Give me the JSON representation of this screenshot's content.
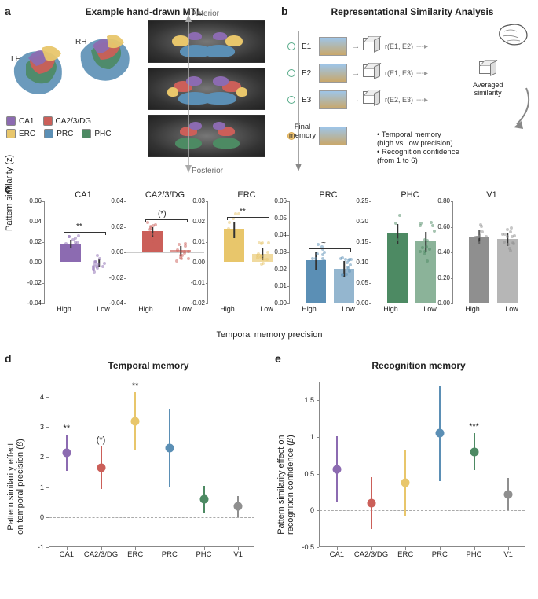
{
  "colors": {
    "CA1": "#8c6bb1",
    "CA23DG": "#cb5f59",
    "ERC": "#e8c66b",
    "PRC": "#5b8fb5",
    "PHC": "#4d8a63",
    "V1": "#8f8f8f",
    "background": "#ffffff"
  },
  "panel_a": {
    "label": "a",
    "title": "Example hand-drawn MTL",
    "lh": "LH",
    "rh": "RH",
    "regions": [
      "CA1",
      "CA2/3/DG",
      "ERC",
      "PRC",
      "PHC"
    ],
    "arrow_anterior": "Anterior",
    "arrow_posterior": "Posterior"
  },
  "panel_b": {
    "label": "b",
    "title": "Representational Similarity Analysis",
    "rows": [
      "E1",
      "E2",
      "E3"
    ],
    "corr_labels": [
      "r(E1, E2)",
      "r(E1, E3)",
      "r(E2, E3)"
    ],
    "avg_label": "Averaged\nsimilarity",
    "final": "Final\nmemory",
    "bullets": [
      "• Temporal memory",
      "  (high vs. low precision)",
      "• Recognition confidence",
      "  (from 1 to 6)"
    ]
  },
  "panel_c": {
    "label": "c",
    "ylabel": "Pattern similarity (z)",
    "xlabel_main": "Temporal memory precision",
    "xticks": [
      "High",
      "Low"
    ],
    "subplots": [
      {
        "name": "CA1",
        "color": "#8c6bb1",
        "ylim": [
          -0.04,
          0.06
        ],
        "ystep": 0.02,
        "high": 0.018,
        "low": -0.001,
        "err_h": 0.004,
        "err_l": 0.004,
        "sig": "**",
        "bracket": true
      },
      {
        "name": "CA2/3/DG",
        "color": "#cb5f59",
        "ylim": [
          -0.04,
          0.04
        ],
        "ystep": 0.02,
        "high": 0.016,
        "low": 0.001,
        "err_h": 0.004,
        "err_l": 0.004,
        "sig": "(*)",
        "bracket": true
      },
      {
        "name": "ERC",
        "color": "#e8c66b",
        "ylim": [
          -0.02,
          0.03
        ],
        "ystep": 0.01,
        "high": 0.016,
        "low": 0.004,
        "err_h": 0.004,
        "err_l": 0.003,
        "sig": "**",
        "bracket": true
      },
      {
        "name": "PRC",
        "color": "#5b8fb5",
        "ylim": [
          0.0,
          0.06
        ],
        "ystep": 0.01,
        "high": 0.025,
        "low": 0.02,
        "err_h": 0.005,
        "err_l": 0.005,
        "sig": "~",
        "bracket": true
      },
      {
        "name": "PHC",
        "color": "#4d8a63",
        "ylim": [
          0.0,
          0.25
        ],
        "ystep": 0.05,
        "high": 0.17,
        "low": 0.15,
        "err_h": 0.025,
        "err_l": 0.025,
        "sig": "",
        "bracket": false
      },
      {
        "name": "V1",
        "color": "#8f8f8f",
        "ylim": [
          0.0,
          0.8
        ],
        "ystep": 0.2,
        "high": 0.52,
        "low": 0.5,
        "err_h": 0.05,
        "err_l": 0.05,
        "sig": "",
        "bracket": false
      }
    ]
  },
  "panel_d": {
    "label": "d",
    "title": "Temporal memory",
    "ylabel": "Pattern similarity effect\non temporal precision (β)",
    "ylim": [
      -1,
      4.5
    ],
    "ystep": 1,
    "points": [
      {
        "name": "CA1",
        "val": 2.15,
        "err": 0.6,
        "sig": "**",
        "color": "#8c6bb1"
      },
      {
        "name": "CA2/3/DG",
        "val": 1.65,
        "err": 0.7,
        "sig": "(*)",
        "color": "#cb5f59"
      },
      {
        "name": "ERC",
        "val": 3.2,
        "err": 0.95,
        "sig": "**",
        "color": "#e8c66b"
      },
      {
        "name": "PRC",
        "val": 2.3,
        "err": 1.3,
        "sig": "",
        "color": "#5b8fb5"
      },
      {
        "name": "PHC",
        "val": 0.6,
        "err": 0.45,
        "sig": "",
        "color": "#4d8a63"
      },
      {
        "name": "V1",
        "val": 0.35,
        "err": 0.35,
        "sig": "",
        "color": "#8f8f8f"
      }
    ]
  },
  "panel_e": {
    "label": "e",
    "title": "Recognition memory",
    "ylabel": "Pattern similarity effect on\nrecognition confidence (β)",
    "ylim": [
      -0.5,
      1.75
    ],
    "ystep": 0.5,
    "points": [
      {
        "name": "CA1",
        "val": 0.56,
        "err": 0.45,
        "sig": "",
        "color": "#8c6bb1"
      },
      {
        "name": "CA2/3/DG",
        "val": 0.1,
        "err": 0.35,
        "sig": "",
        "color": "#cb5f59"
      },
      {
        "name": "ERC",
        "val": 0.38,
        "err": 0.45,
        "sig": "",
        "color": "#e8c66b"
      },
      {
        "name": "PRC",
        "val": 1.05,
        "err": 0.65,
        "sig": "",
        "color": "#5b8fb5"
      },
      {
        "name": "PHC",
        "val": 0.8,
        "err": 0.25,
        "sig": "***",
        "color": "#4d8a63"
      },
      {
        "name": "V1",
        "val": 0.22,
        "err": 0.22,
        "sig": "",
        "color": "#8f8f8f"
      }
    ]
  }
}
